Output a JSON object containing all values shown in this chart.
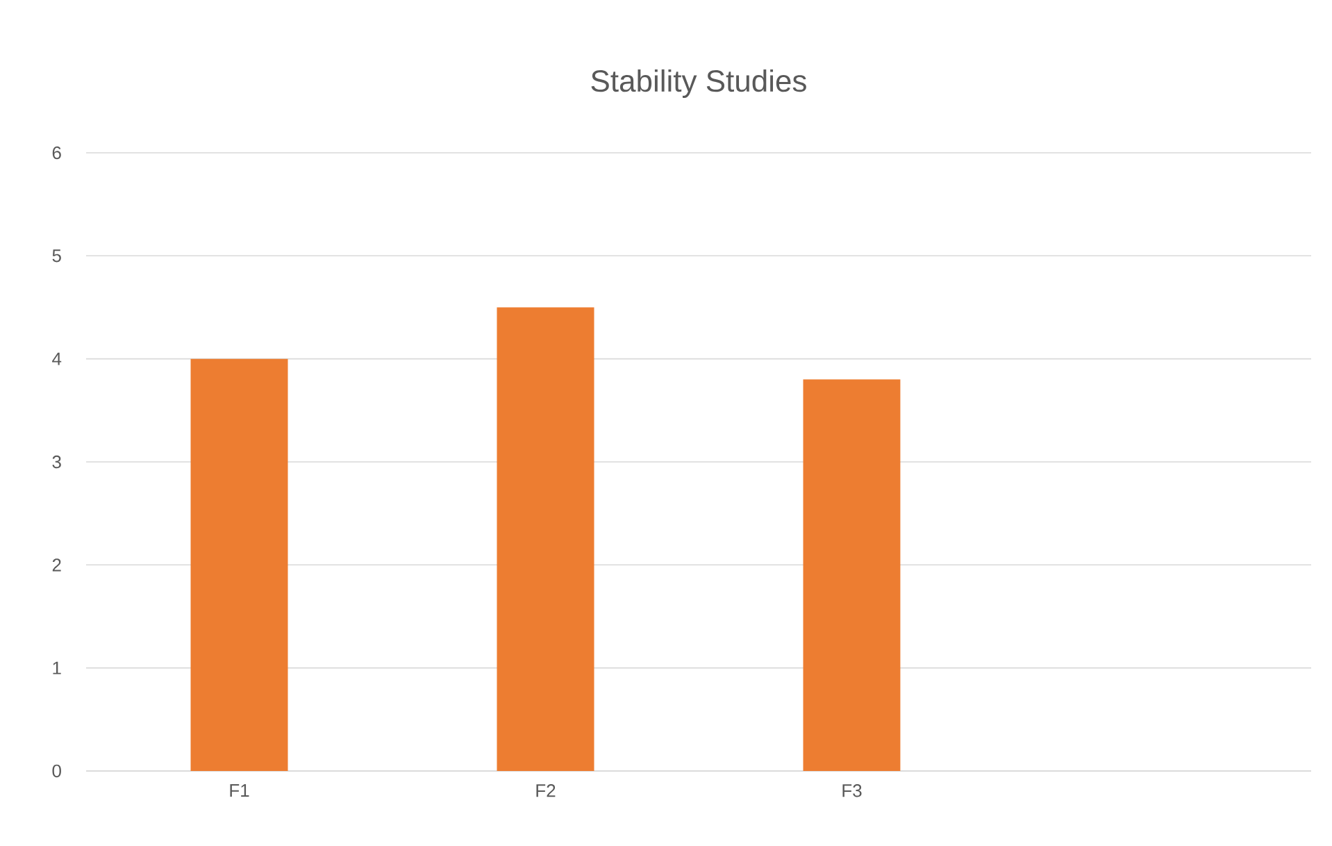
{
  "chart_data": {
    "type": "bar",
    "title": "Stability Studies",
    "categories": [
      "F1",
      "F2",
      "F3",
      null
    ],
    "values": [
      4,
      4.5,
      3.8,
      null
    ],
    "color": "#ed7d31",
    "ylim": [
      0,
      6
    ],
    "yticks": [
      0,
      1,
      2,
      3,
      4,
      5,
      6
    ],
    "grid": "y"
  }
}
